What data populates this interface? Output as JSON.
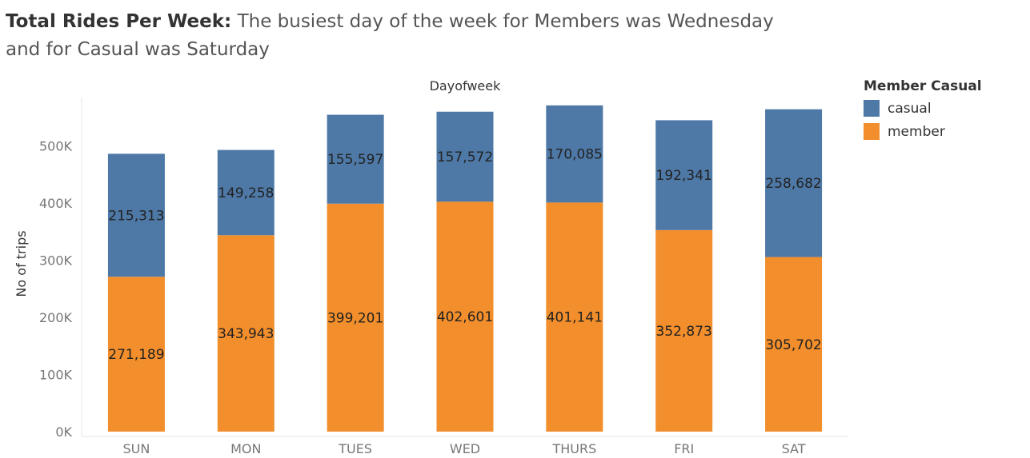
{
  "title": {
    "bold": "Total Rides Per Week:",
    "text": "The busiest day of the week for Members was Wednesday and for Casual was Saturday"
  },
  "legend": {
    "title": "Member Casual",
    "items": [
      {
        "label": "casual",
        "color": "#4e79a7"
      },
      {
        "label": "member",
        "color": "#f28e2b"
      }
    ]
  },
  "chart_data": {
    "type": "bar",
    "stacked": true,
    "title": "Total Rides Per Week:",
    "subtitle": "The busiest day of the week for Members was Wednesday and for Casual was Saturday",
    "top_axis_label": "Dayofweek",
    "xlabel": "",
    "ylabel": "No of trips",
    "categories": [
      "SUN",
      "MON",
      "TUES",
      "WED",
      "THURS",
      "FRI",
      "SAT"
    ],
    "series": [
      {
        "name": "member",
        "color": "#f28e2b",
        "values": [
          271189,
          343943,
          399201,
          402601,
          401141,
          352873,
          305702
        ],
        "labels": [
          "271,189",
          "343,943",
          "399,201",
          "402,601",
          "401,141",
          "352,873",
          "305,702"
        ]
      },
      {
        "name": "casual",
        "color": "#4e79a7",
        "values": [
          215313,
          149258,
          155597,
          157572,
          170085,
          192341,
          258682
        ],
        "labels": [
          "215,313",
          "149,258",
          "155,597",
          "157,572",
          "170,085",
          "192,341",
          "258,682"
        ]
      }
    ],
    "yticks": [
      0,
      100000,
      200000,
      300000,
      400000,
      500000
    ],
    "ytick_labels": [
      "0K",
      "100K",
      "200K",
      "300K",
      "400K",
      "500K"
    ],
    "ylim": [
      0,
      585000
    ],
    "grid": false,
    "legend_position": "right"
  }
}
